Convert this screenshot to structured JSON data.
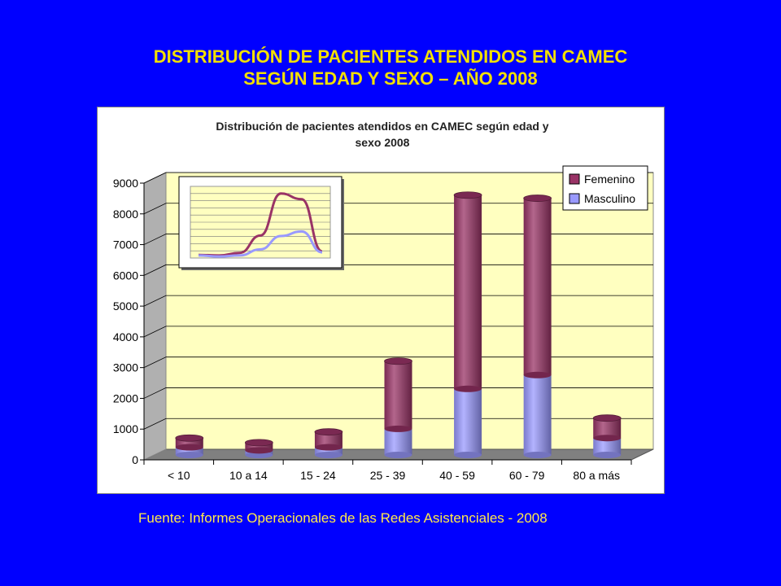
{
  "slide": {
    "title_line1": "DISTRIBUCIÓN DE PACIENTES ATENDIDOS EN CAMEC",
    "title_line2": "SEGÚN EDAD Y SEXO – AÑO 2008",
    "source": "Fuente: Informes Operacionales de las Redes Asistenciales - 2008"
  },
  "colors": {
    "background": "#0000ff",
    "title": "#f2e000",
    "femenino": "#993366",
    "masculino": "#9999ff",
    "plot_wall": "#ffffc0"
  },
  "chart_data": {
    "type": "bar",
    "stacked": true,
    "title_line1": "Distribución de pacientes atendidos en CAMEC según edad y",
    "title_line2": "sexo 2008",
    "categories": [
      "< 10",
      "10 a 14",
      "15 - 24",
      "25 - 39",
      "40 - 59",
      "60 - 79",
      "80 a más"
    ],
    "series": [
      {
        "name": "Masculino",
        "values": [
          250,
          150,
          250,
          850,
          2150,
          2600,
          550
        ]
      },
      {
        "name": "Femenino",
        "values": [
          300,
          250,
          500,
          2200,
          6300,
          5750,
          650
        ]
      }
    ],
    "ylim": [
      0,
      9000
    ],
    "yticks": [
      0,
      1000,
      2000,
      3000,
      4000,
      5000,
      6000,
      7000,
      8000,
      9000
    ],
    "legend": [
      "Femenino",
      "Masculino"
    ],
    "legend_position": "top-right",
    "grid": true,
    "inset": {
      "type": "line",
      "description_series": [
        {
          "name": "Femenino",
          "values": [
            300,
            250,
            500,
            2200,
            6300,
            5750,
            650
          ]
        },
        {
          "name": "Masculino",
          "values": [
            250,
            150,
            250,
            850,
            2150,
            2600,
            550
          ]
        }
      ]
    }
  }
}
